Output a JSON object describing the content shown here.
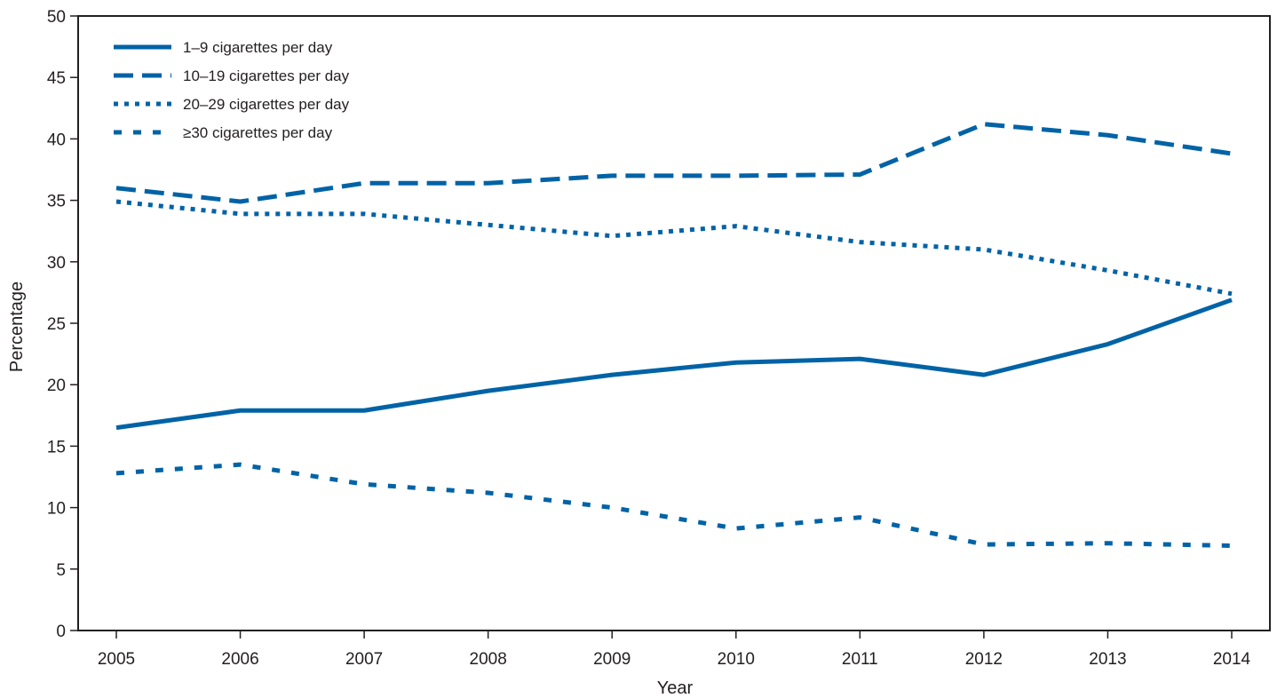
{
  "chart_data": {
    "type": "line",
    "title": "",
    "xlabel": "Year",
    "ylabel": "Percentage",
    "x": [
      2005,
      2006,
      2007,
      2008,
      2009,
      2010,
      2011,
      2012,
      2013,
      2014
    ],
    "ylim": [
      0,
      50
    ],
    "yticks": [
      0,
      5,
      10,
      15,
      20,
      25,
      30,
      35,
      40,
      45,
      50
    ],
    "grid": false,
    "legend_position": "top-left",
    "line_color": "#0063a6",
    "series": [
      {
        "name": "1–9 cigarettes per day",
        "style": "solid",
        "values": [
          16.5,
          17.9,
          17.9,
          19.5,
          20.8,
          21.8,
          22.1,
          20.8,
          23.3,
          26.9
        ]
      },
      {
        "name": "10–19 cigarettes per day",
        "style": "dashed",
        "values": [
          36.0,
          34.9,
          36.4,
          36.4,
          37.0,
          37.0,
          37.1,
          41.2,
          40.3,
          38.8
        ]
      },
      {
        "name": "20–29 cigarettes per day",
        "style": "dotted",
        "values": [
          34.9,
          33.9,
          33.9,
          33.0,
          32.1,
          32.9,
          31.6,
          31.0,
          29.3,
          27.4
        ]
      },
      {
        "name": "≥30 cigarettes per day",
        "style": "dotted-wide",
        "values": [
          12.8,
          13.5,
          11.9,
          11.2,
          10.0,
          8.3,
          9.2,
          7.0,
          7.1,
          6.9
        ]
      }
    ]
  }
}
